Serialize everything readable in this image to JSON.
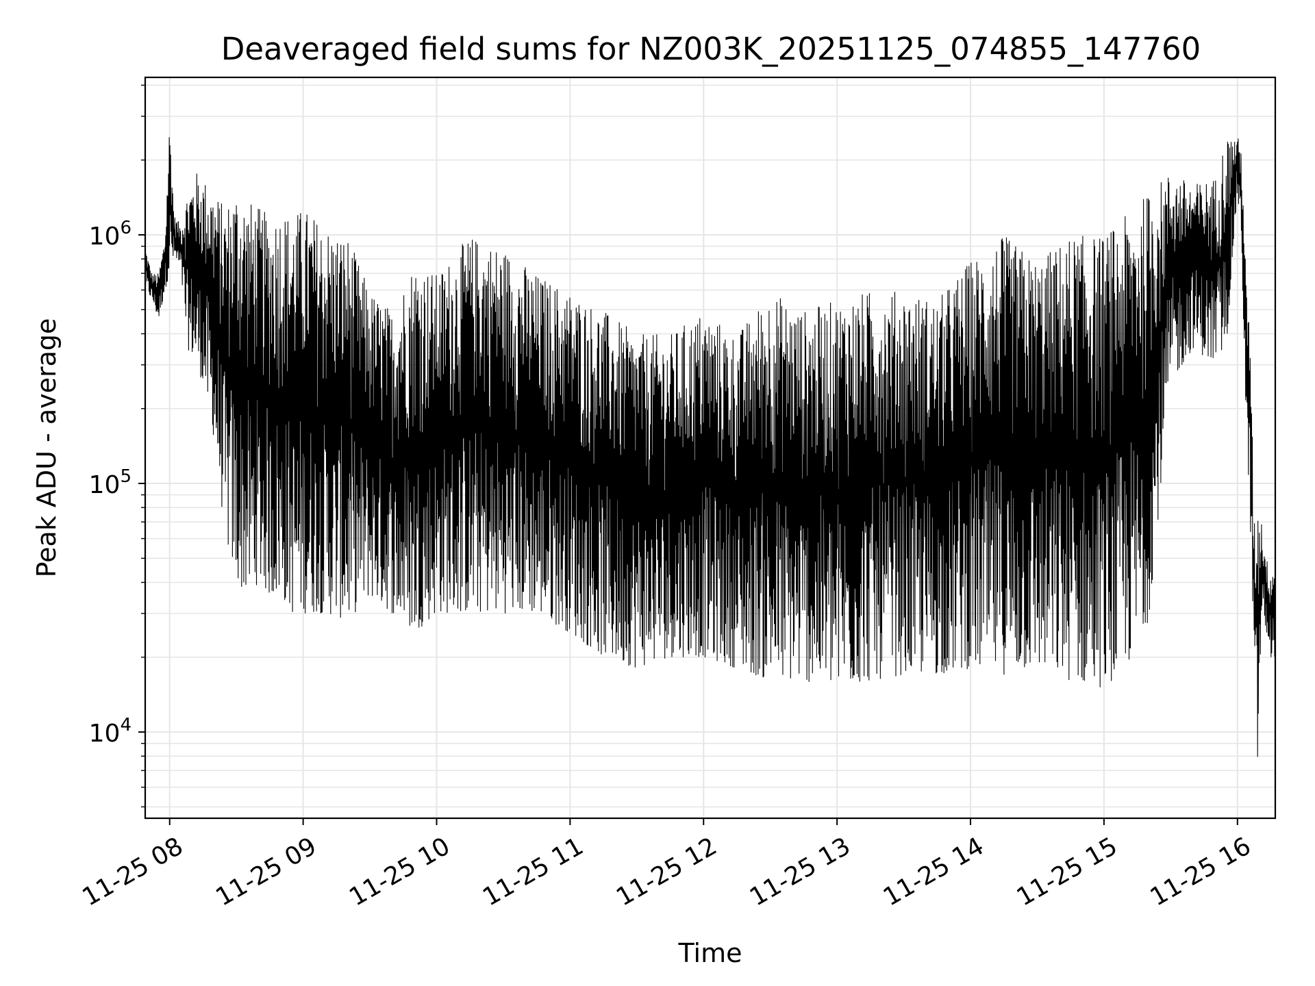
{
  "chart_data": {
    "type": "line",
    "title": "Deaveraged field sums for NZ003K_20251125_074855_147760",
    "xlabel": "Time",
    "ylabel": "Peak ADU - average",
    "y_scale": "log",
    "ylim": [
      4500,
      4300000
    ],
    "xlim": [
      "2025-11-25 07:49:00",
      "2025-11-25 16:17:00"
    ],
    "grid": true,
    "x_ticks": [
      "11-25 08",
      "11-25 09",
      "11-25 10",
      "11-25 11",
      "11-25 12",
      "11-25 13",
      "11-25 14",
      "11-25 15",
      "11-25 16"
    ],
    "x_tick_times": [
      "2025-11-25 08:00:00",
      "2025-11-25 09:00:00",
      "2025-11-25 10:00:00",
      "2025-11-25 11:00:00",
      "2025-11-25 12:00:00",
      "2025-11-25 13:00:00",
      "2025-11-25 14:00:00",
      "2025-11-25 15:00:00",
      "2025-11-25 16:00:00"
    ],
    "y_ticks": [
      {
        "value": 10000,
        "base": "10",
        "exp": "4"
      },
      {
        "value": 100000,
        "base": "10",
        "exp": "5"
      },
      {
        "value": 1000000,
        "base": "10",
        "exp": "6"
      }
    ],
    "line_color": "#000000",
    "grid_color": "#e6e6e6",
    "series": [
      {
        "x": [
          "2025-11-25 07:49:00",
          "2025-11-25 07:52:00",
          "2025-11-25 07:55:00",
          "2025-11-25 07:58:00",
          "2025-11-25 08:00:00",
          "2025-11-25 08:02:00",
          "2025-11-25 08:05:00",
          "2025-11-25 08:08:00",
          "2025-11-25 08:12:00",
          "2025-11-25 08:15:00",
          "2025-11-25 08:20:00",
          "2025-11-25 08:25:00",
          "2025-11-25 08:30:00",
          "2025-11-25 08:35:00",
          "2025-11-25 08:40:00",
          "2025-11-25 08:45:00",
          "2025-11-25 08:50:00",
          "2025-11-25 08:55:00",
          "2025-11-25 09:00:00",
          "2025-11-25 09:10:00",
          "2025-11-25 09:20:00",
          "2025-11-25 09:30:00",
          "2025-11-25 09:40:00",
          "2025-11-25 09:50:00",
          "2025-11-25 10:00:00",
          "2025-11-25 10:15:00",
          "2025-11-25 10:30:00",
          "2025-11-25 10:45:00",
          "2025-11-25 11:00:00",
          "2025-11-25 11:15:00",
          "2025-11-25 11:30:00",
          "2025-11-25 11:45:00",
          "2025-11-25 12:00:00",
          "2025-11-25 12:15:00",
          "2025-11-25 12:30:00",
          "2025-11-25 12:45:00",
          "2025-11-25 13:00:00",
          "2025-11-25 13:15:00",
          "2025-11-25 13:30:00",
          "2025-11-25 13:45:00",
          "2025-11-25 14:00:00",
          "2025-11-25 14:15:00",
          "2025-11-25 14:30:00",
          "2025-11-25 14:45:00",
          "2025-11-25 15:00:00",
          "2025-11-25 15:10:00",
          "2025-11-25 15:20:00",
          "2025-11-25 15:30:00",
          "2025-11-25 15:40:00",
          "2025-11-25 15:50:00",
          "2025-11-25 15:55:00",
          "2025-11-25 16:00:00",
          "2025-11-25 16:02:00",
          "2025-11-25 16:04:00",
          "2025-11-25 16:06:00",
          "2025-11-25 16:07:00",
          "2025-11-25 16:08:00",
          "2025-11-25 16:09:00",
          "2025-11-25 16:11:00",
          "2025-11-25 16:13:00",
          "2025-11-25 16:15:00",
          "2025-11-25 16:17:00"
        ],
        "hi": [
          900000,
          700000,
          700000,
          1000000,
          3000000,
          1200000,
          1100000,
          1500000,
          1800000,
          1700000,
          1500000,
          1300000,
          1600000,
          1400000,
          1300000,
          1200000,
          1300000,
          1200000,
          1300000,
          1100000,
          1000000,
          600000,
          500000,
          800000,
          700000,
          1000000,
          900000,
          700000,
          600000,
          500000,
          400000,
          400000,
          500000,
          400000,
          600000,
          500000,
          550000,
          600000,
          600000,
          550000,
          800000,
          1000000,
          800000,
          1000000,
          1000000,
          1200000,
          1500000,
          1800000,
          1600000,
          1700000,
          2500000,
          2500000,
          2200000,
          600000,
          400000,
          100000,
          60000,
          90000,
          70000,
          50000,
          45000,
          50000
        ],
        "lo": [
          600000,
          550000,
          450000,
          600000,
          700000,
          800000,
          700000,
          350000,
          300000,
          250000,
          150000,
          60000,
          40000,
          35000,
          40000,
          35000,
          35000,
          30000,
          30000,
          30000,
          28000,
          35000,
          30000,
          25000,
          30000,
          30000,
          30000,
          30000,
          25000,
          20000,
          18000,
          20000,
          20000,
          18000,
          16000,
          16000,
          15000,
          16000,
          17000,
          17000,
          18000,
          17000,
          18000,
          16000,
          15000,
          18000,
          28000,
          250000,
          350000,
          300000,
          350000,
          1500000,
          800000,
          150000,
          60000,
          25000,
          15000,
          7000,
          30000,
          25000,
          20000,
          20000
        ]
      }
    ]
  }
}
